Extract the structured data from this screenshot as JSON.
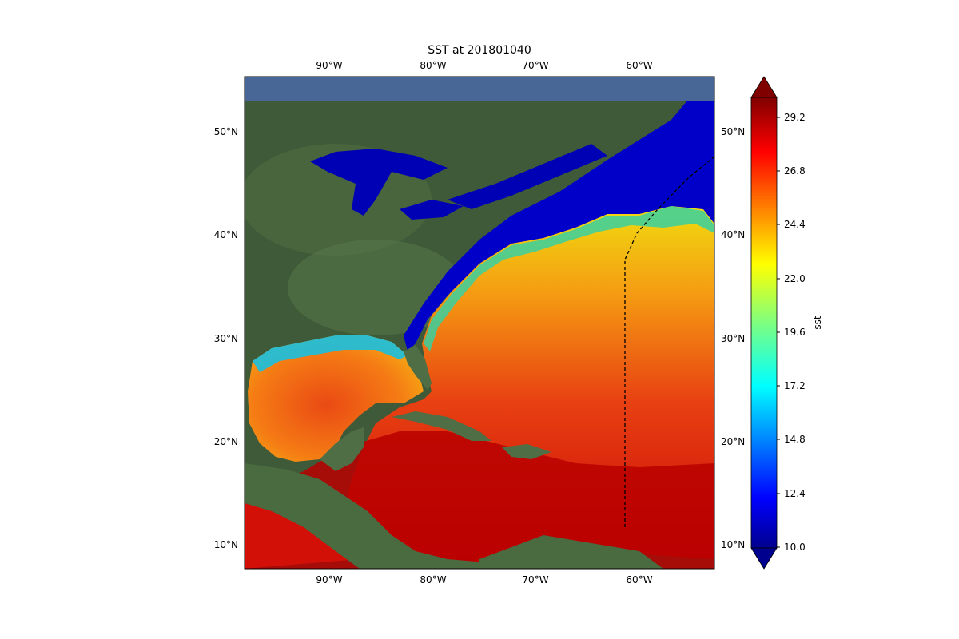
{
  "figure": {
    "title": "SST at 201801040",
    "lon_ticks": [
      "90°W",
      "80°W",
      "70°W",
      "60°W"
    ],
    "lat_ticks": [
      "50°N",
      "40°N",
      "30°N",
      "20°N",
      "10°N"
    ]
  },
  "colorbar": {
    "label": "sst",
    "ticks": [
      "29.2",
      "26.8",
      "24.4",
      "22.0",
      "19.6",
      "17.2",
      "14.8",
      "12.4",
      "10.0"
    ],
    "range": [
      10.0,
      30.0
    ],
    "colormap": "jet",
    "extend": "both"
  },
  "map": {
    "projection": "PlateCarree",
    "extent_lon": [
      -98,
      -53
    ],
    "extent_lat": [
      8,
      55
    ],
    "background": "satellite imagery",
    "track_style": "dashed black line",
    "track": [
      [
        -61.2,
        12
      ],
      [
        -61.2,
        38
      ],
      [
        -60,
        40.5
      ],
      [
        -58,
        42.5
      ],
      [
        -55,
        45
      ],
      [
        -53,
        47
      ]
    ]
  }
}
